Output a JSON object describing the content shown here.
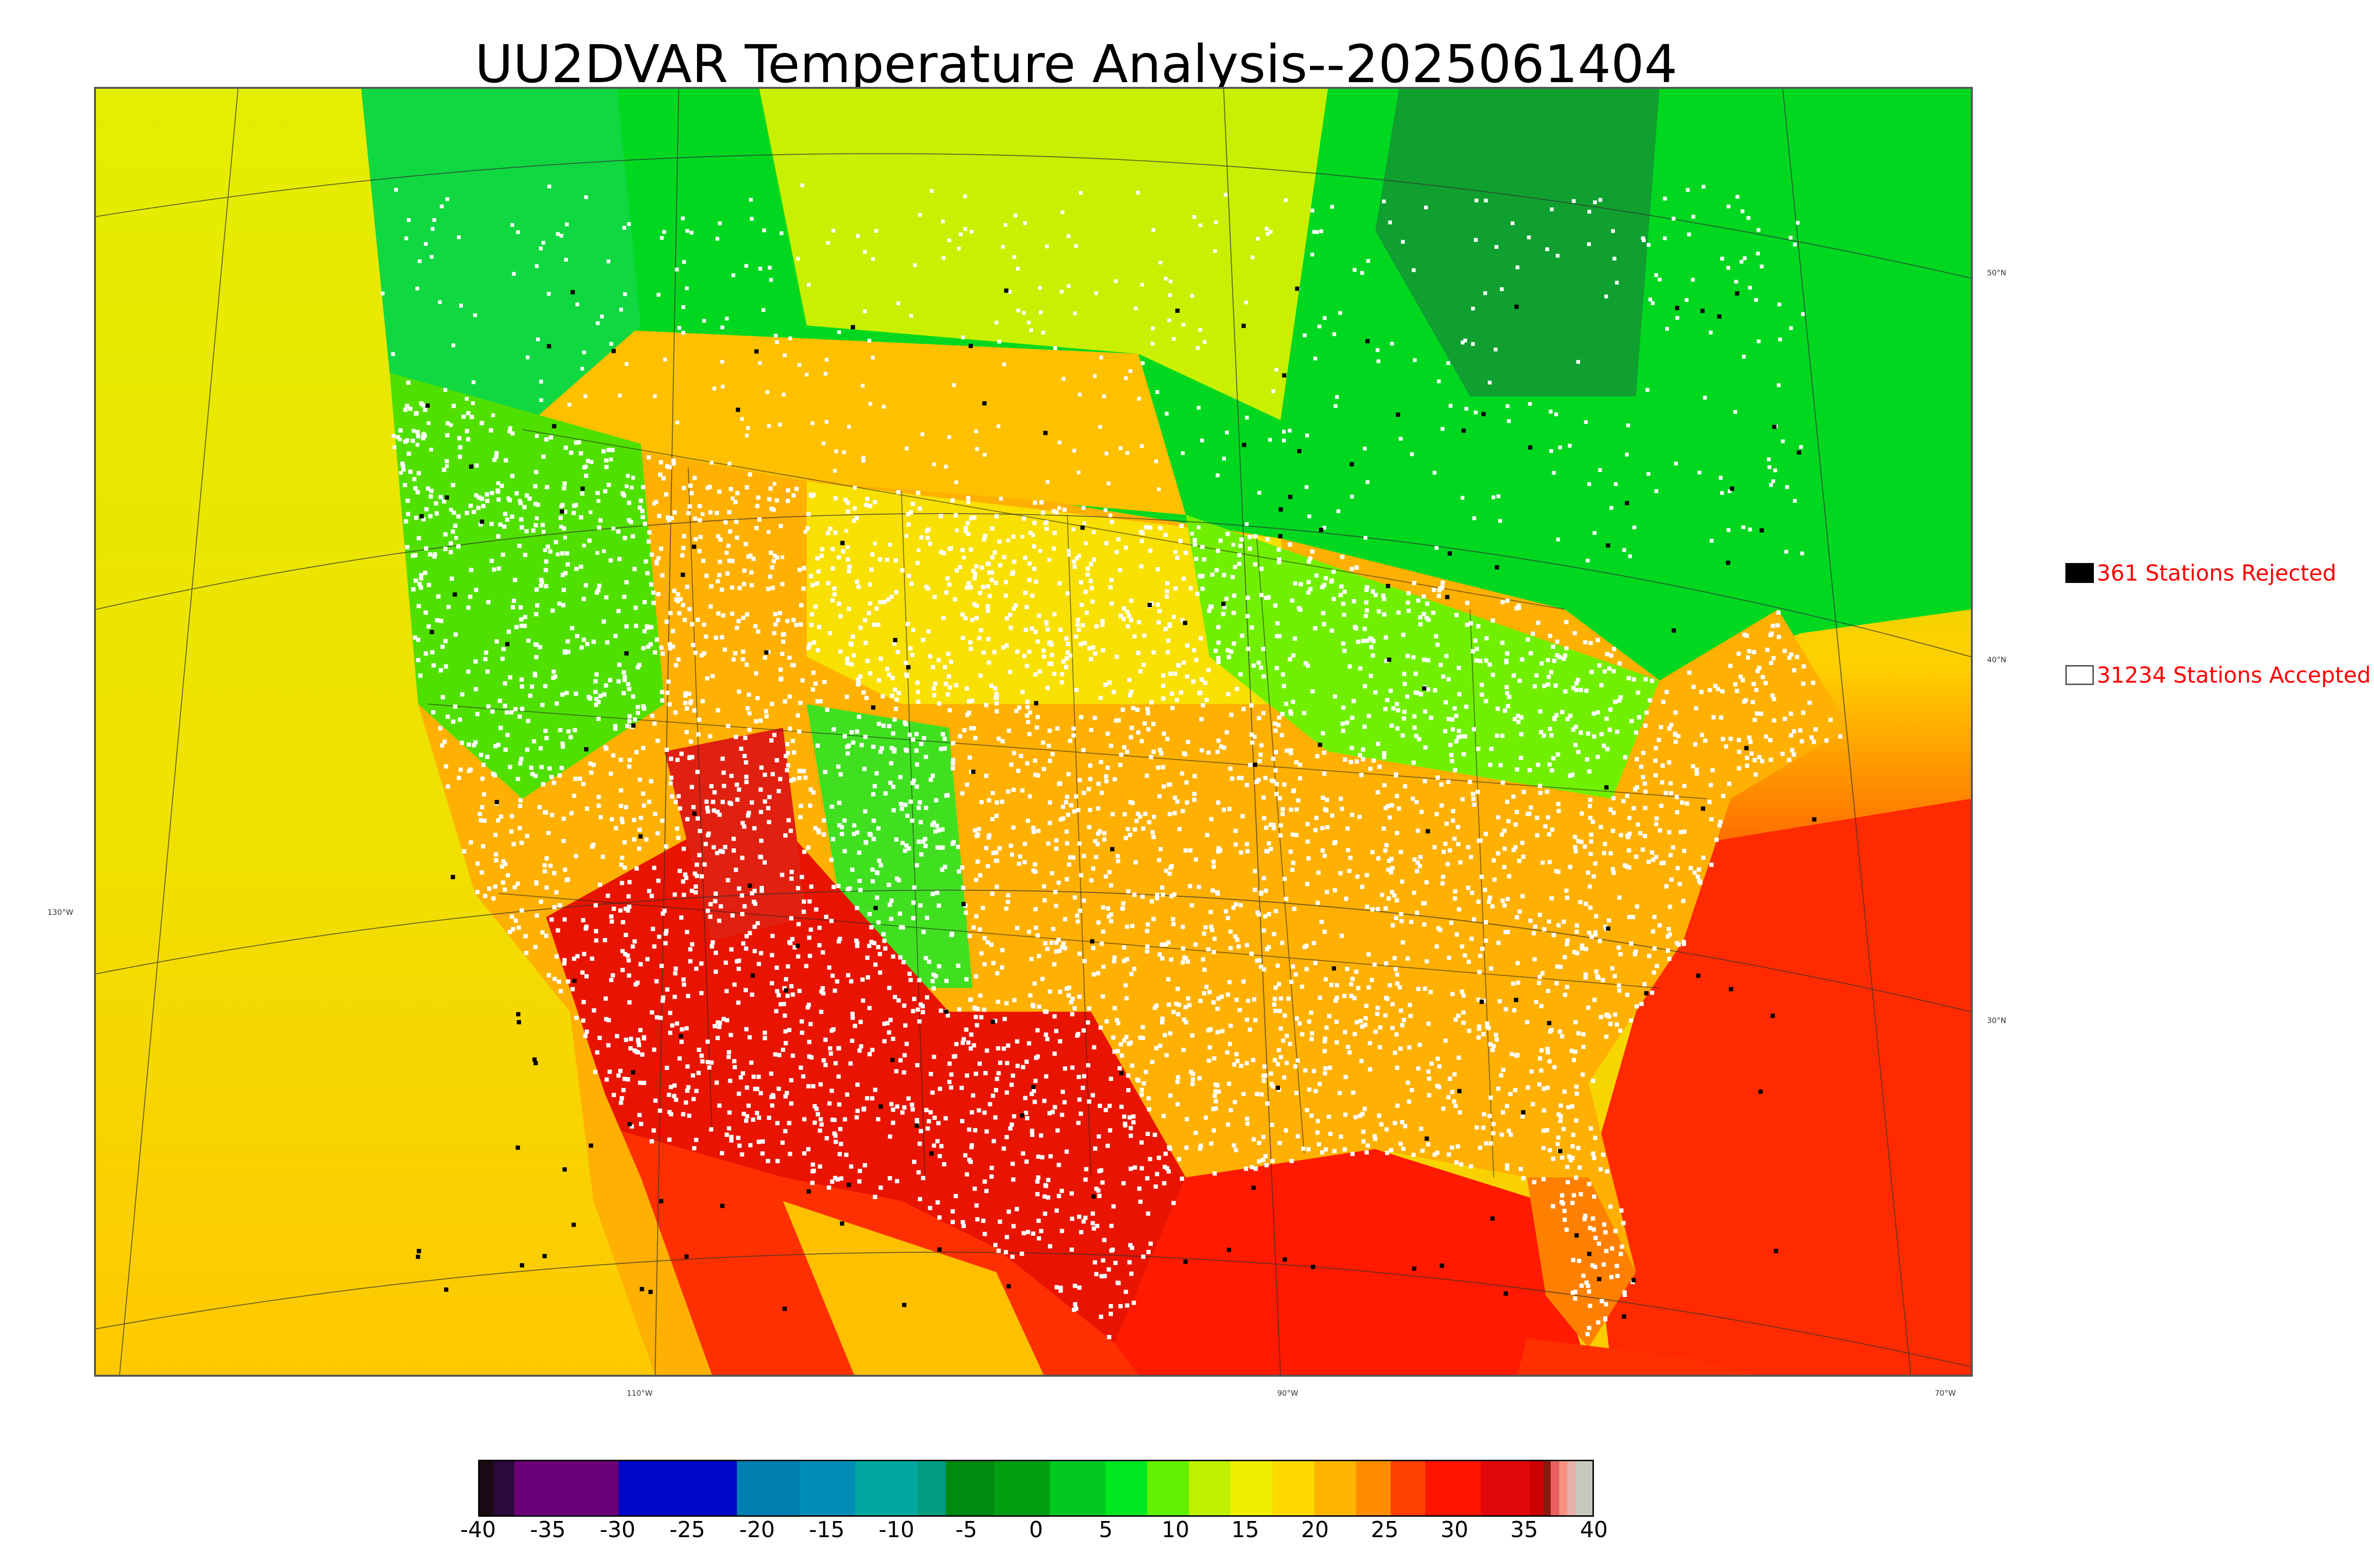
{
  "title": "UU2DVAR Temperature Analysis--2025061404",
  "map": {
    "latitude_labels": [
      "50°N",
      "40°N",
      "30°N"
    ],
    "longitude_labels": [
      "130°W",
      "110°W",
      "90°W",
      "70°W"
    ],
    "colors": {
      "cold_water": "#e4ee00",
      "warm_water": "#ff1a00",
      "land_warm": "#ffa500",
      "land_hot": "#e81400",
      "land_mild": "#c8f000",
      "land_cool": "#22e000",
      "canada_green": "#00cc20",
      "hudson_dark": "#0f9a30",
      "station_accepted": "#ffffff",
      "station_rejected": "#000000"
    }
  },
  "legend": {
    "rejected": {
      "label": "361 Stations Rejected",
      "swatch_color": "#000000"
    },
    "accepted": {
      "label": "31234 Stations Accepted",
      "swatch_color": "#ffffff"
    }
  },
  "colorbar": {
    "min": -40,
    "max": 40,
    "ticks": [
      "-40",
      "-35",
      "-30",
      "-25",
      "-20",
      "-15",
      "-10",
      "-5",
      "0",
      "5",
      "10",
      "15",
      "20",
      "25",
      "30",
      "35",
      "40"
    ],
    "segments": [
      {
        "from": -40,
        "to": -39,
        "color": "#1a0a14"
      },
      {
        "from": -39,
        "to": -37.5,
        "color": "#2a0a3a"
      },
      {
        "from": -37.5,
        "to": -30,
        "color": "#6a0078"
      },
      {
        "from": -30,
        "to": -21.5,
        "color": "#0008c8"
      },
      {
        "from": -21.5,
        "to": -17,
        "color": "#0080b0"
      },
      {
        "from": -17,
        "to": -13,
        "color": "#008cb8"
      },
      {
        "from": -13,
        "to": -8.5,
        "color": "#00a8a0"
      },
      {
        "from": -8.5,
        "to": -6.5,
        "color": "#009c80"
      },
      {
        "from": -6.5,
        "to": -3,
        "color": "#008a10"
      },
      {
        "from": -3,
        "to": 1,
        "color": "#00a010"
      },
      {
        "from": 1,
        "to": 5,
        "color": "#00c820"
      },
      {
        "from": 5,
        "to": 8,
        "color": "#00e820"
      },
      {
        "from": 8,
        "to": 11,
        "color": "#60f000"
      },
      {
        "from": 11,
        "to": 14,
        "color": "#c0f000"
      },
      {
        "from": 14,
        "to": 17,
        "color": "#eef000"
      },
      {
        "from": 17,
        "to": 20,
        "color": "#ffd800"
      },
      {
        "from": 20,
        "to": 23,
        "color": "#ffb400"
      },
      {
        "from": 23,
        "to": 25.5,
        "color": "#ff8c00"
      },
      {
        "from": 25.5,
        "to": 28,
        "color": "#ff4000"
      },
      {
        "from": 28,
        "to": 32,
        "color": "#ff1400"
      },
      {
        "from": 32,
        "to": 35.5,
        "color": "#e00808"
      },
      {
        "from": 35.5,
        "to": 36.5,
        "color": "#cc0000"
      },
      {
        "from": 36.5,
        "to": 37,
        "color": "#8a1a10"
      },
      {
        "from": 37,
        "to": 37.6,
        "color": "#e86060"
      },
      {
        "from": 37.6,
        "to": 38.2,
        "color": "#f89080"
      },
      {
        "from": 38.2,
        "to": 38.8,
        "color": "#e8b0a8"
      },
      {
        "from": 38.8,
        "to": 40,
        "color": "#c8c8c0"
      }
    ]
  }
}
